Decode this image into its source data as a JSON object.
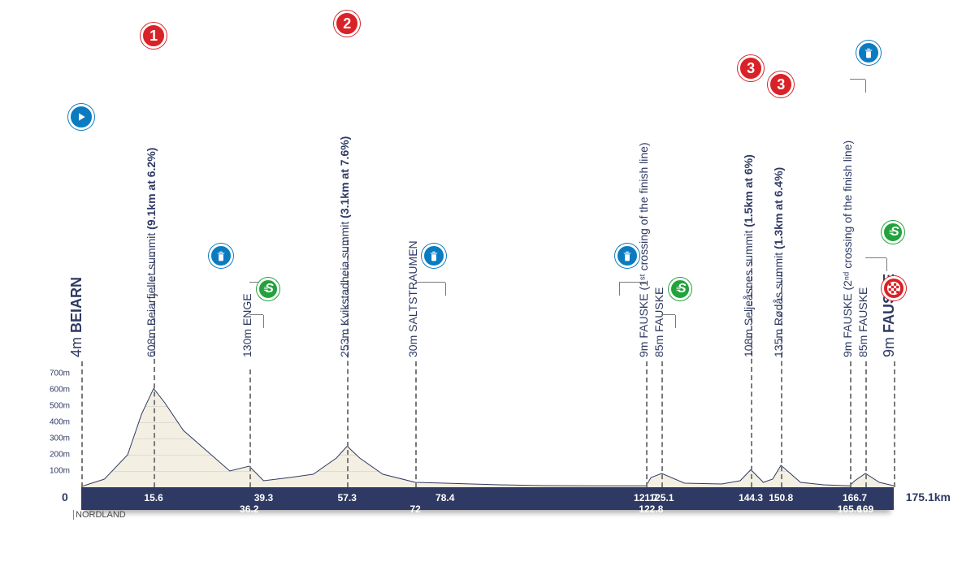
{
  "region": "NORDLAND",
  "colors": {
    "brand_dark": "#2e3a63",
    "red": "#d92227",
    "green": "#22a23d",
    "blue": "#0b7bc1",
    "grid": "#e0dbd0",
    "fill": "#f4efe3"
  },
  "axis": {
    "total_km": 175.1,
    "km_zero_label": "0",
    "km_total_label": "175.1km",
    "y_ticks": [
      100,
      200,
      300,
      400,
      500,
      600,
      700
    ],
    "y_tick_labels": [
      "100m",
      "200m",
      "300m",
      "400m",
      "500m",
      "600m",
      "700m"
    ],
    "y_max": 700
  },
  "elevation": [
    [
      0,
      4
    ],
    [
      5,
      50
    ],
    [
      10,
      200
    ],
    [
      13,
      450
    ],
    [
      15.6,
      608
    ],
    [
      18,
      520
    ],
    [
      22,
      350
    ],
    [
      28,
      200
    ],
    [
      32,
      100
    ],
    [
      36.2,
      130
    ],
    [
      39.3,
      40
    ],
    [
      45,
      60
    ],
    [
      50,
      80
    ],
    [
      55,
      180
    ],
    [
      57.3,
      253
    ],
    [
      60,
      180
    ],
    [
      65,
      80
    ],
    [
      72,
      30
    ],
    [
      78.4,
      25
    ],
    [
      90,
      15
    ],
    [
      100,
      10
    ],
    [
      110,
      9
    ],
    [
      121.7,
      9
    ],
    [
      122.8,
      60
    ],
    [
      125.1,
      85
    ],
    [
      130,
      25
    ],
    [
      138,
      20
    ],
    [
      142,
      40
    ],
    [
      144.3,
      108
    ],
    [
      147,
      30
    ],
    [
      149,
      50
    ],
    [
      150.8,
      135
    ],
    [
      155,
      30
    ],
    [
      160,
      15
    ],
    [
      165.6,
      9
    ],
    [
      166.7,
      40
    ],
    [
      169,
      85
    ],
    [
      172,
      30
    ],
    [
      175.1,
      9
    ]
  ],
  "km_marks": [
    {
      "km": 15.6,
      "row": 0
    },
    {
      "km": 36.2,
      "row": 1
    },
    {
      "km": 39.3,
      "row": 0
    },
    {
      "km": 57.3,
      "row": 0
    },
    {
      "km": 72,
      "row": 1
    },
    {
      "km": 78.4,
      "row": 0
    },
    {
      "km": 121.7,
      "row": 0
    },
    {
      "km": 122.8,
      "row": 1
    },
    {
      "km": 125.1,
      "row": 0
    },
    {
      "km": 144.3,
      "row": 0
    },
    {
      "km": 150.8,
      "row": 0
    },
    {
      "km": 165.6,
      "row": 1
    },
    {
      "km": 166.7,
      "row": 0
    },
    {
      "km": 169,
      "row": 1
    }
  ],
  "points": [
    {
      "km": 0,
      "dash_h": 155,
      "label_y": 160,
      "big": true,
      "plain": "4m ",
      "bold": "BEIARN",
      "icons": [
        {
          "type": "start",
          "y": 440
        }
      ]
    },
    {
      "km": 15.6,
      "dash_h": 290,
      "label_y": 160,
      "plain": "608m Beiarfjellet summit ",
      "bold": "(9.1km at 6.2%)",
      "icons": [
        {
          "type": "cat",
          "text": "1",
          "y": 540
        }
      ]
    },
    {
      "km": 36.2,
      "dash_h": 145,
      "label_y": 160,
      "plain": "130m ENGE",
      "bold": "",
      "icons": [
        {
          "type": "feed",
          "y": 270,
          "offset": -6
        },
        {
          "type": "sprint",
          "y": 230,
          "offset": 4
        }
      ],
      "leaders": [
        {
          "to_km": 39.3,
          "y": 252
        },
        {
          "to_km": 39.3,
          "y": 212
        }
      ]
    },
    {
      "km": 57.3,
      "dash_h": 305,
      "label_y": 160,
      "plain": "253m Kvikstadheia summit ",
      "bold": "(3.1km at 7.6%)",
      "icons": [
        {
          "type": "cat",
          "text": "2",
          "y": 555
        }
      ]
    },
    {
      "km": 72,
      "dash_h": 155,
      "label_y": 160,
      "plain": "30m SALTSTRAUMEN",
      "bold": "",
      "icons": [
        {
          "type": "feed",
          "y": 270,
          "offset": 4
        }
      ],
      "leaders": [
        {
          "to_km": 78.4,
          "y": 252
        }
      ]
    },
    {
      "km": 121.7,
      "dash_h": 155,
      "label_y": 160,
      "plain": "9m FAUSKE ",
      "thin": "(1ˢᵗ crossing of the finish line)",
      "icons": [
        {
          "type": "feed",
          "y": 270,
          "offset": -4
        }
      ],
      "leaders": [
        {
          "to_km": 116,
          "y": 252
        }
      ]
    },
    {
      "km": 125.1,
      "dash_h": 155,
      "label_y": 160,
      "plain": "85m FAUSKE",
      "bold": "",
      "icons": [
        {
          "type": "sprint",
          "y": 230,
          "offset": 4
        }
      ],
      "leaders": [
        {
          "to_km": 128,
          "y": 212
        }
      ]
    },
    {
      "km": 144.3,
      "dash_h": 280,
      "label_y": 160,
      "plain": "108m Seljeåsnes summit ",
      "bold": "(1.5km at 6%)",
      "icons": [
        {
          "type": "cat",
          "text": "3",
          "y": 500
        }
      ]
    },
    {
      "km": 150.8,
      "dash_h": 265,
      "label_y": 160,
      "plain": "135m Rødås summit ",
      "bold": "(1.3km at 6.4%)",
      "icons": [
        {
          "type": "cat",
          "text": "3",
          "y": 480
        }
      ]
    },
    {
      "km": 165.6,
      "dash_h": 155,
      "label_y": 160,
      "plain": "9m FAUSKE ",
      "thin": "(2ⁿᵈ crossing of the finish line)",
      "icons": [
        {
          "type": "feed",
          "y": 520,
          "offset": 4
        }
      ],
      "leaders": [
        {
          "to_km": 169,
          "y": 502
        }
      ]
    },
    {
      "km": 169,
      "dash_h": 155,
      "label_y": 160,
      "plain": "85m FAUSKE",
      "bold": "",
      "icons": [
        {
          "type": "sprint",
          "y": 300,
          "offset": 6
        }
      ],
      "leaders": [
        {
          "to_km": 173.5,
          "y": 282
        }
      ]
    },
    {
      "km": 175.1,
      "dash_h": 155,
      "label_y": 160,
      "big": true,
      "plain": "9m ",
      "bold": "FAUSKE",
      "icons": [
        {
          "type": "finish",
          "y": 230
        }
      ]
    }
  ]
}
